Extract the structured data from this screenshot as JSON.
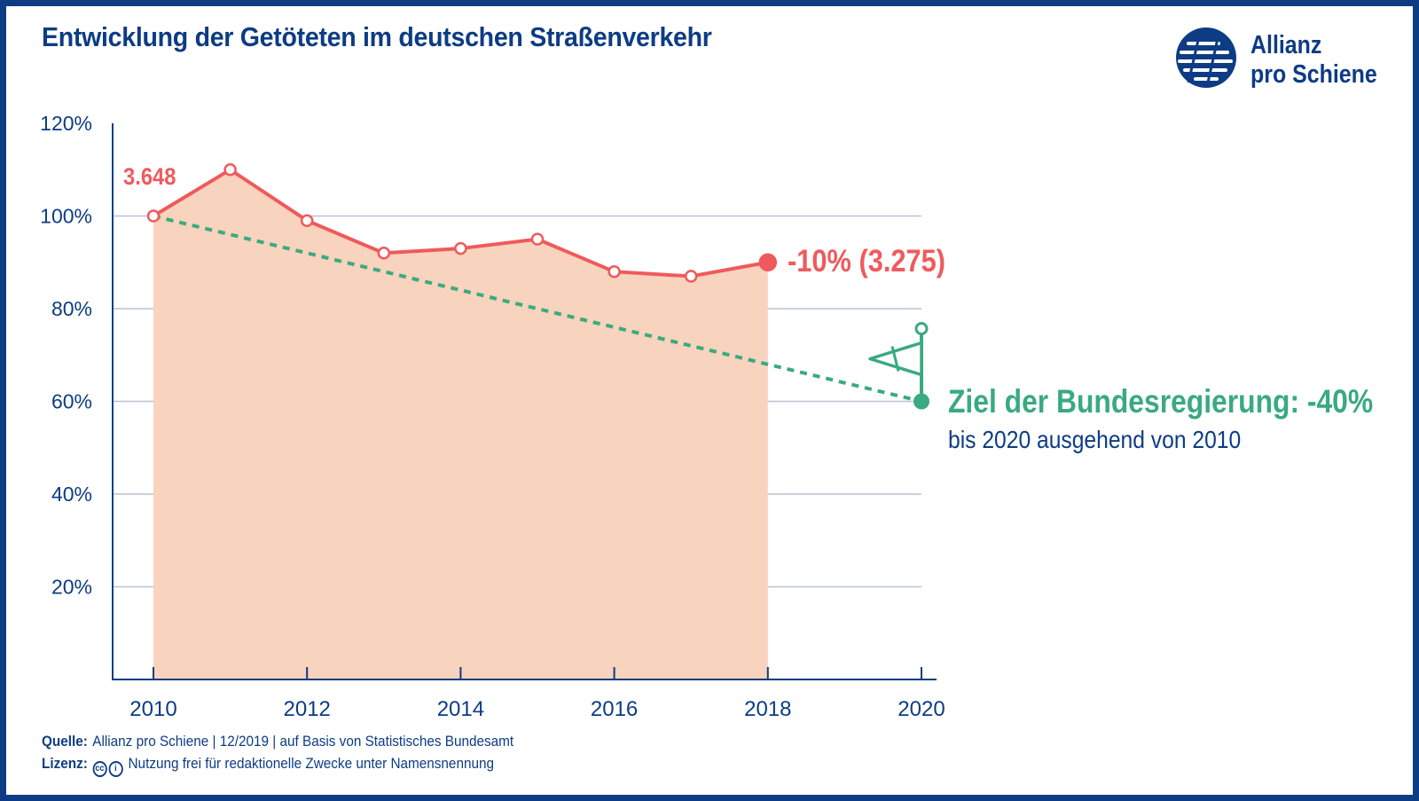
{
  "title": "Entwicklung der Getöteten im deutschen Straßenverkehr",
  "logo": {
    "line1": "Allianz",
    "line2": "pro Schiene",
    "icon": "allianz-pro-schiene-logo-icon"
  },
  "colors": {
    "navy": "#0d3c84",
    "red": "#ef5a5d",
    "fill": "#f8d3bd",
    "green": "#3aaa80",
    "grid": "#b8c2d2"
  },
  "chart_data": {
    "type": "line",
    "x": [
      2010,
      2011,
      2012,
      2013,
      2014,
      2015,
      2016,
      2017,
      2018
    ],
    "series": [
      {
        "values": [
          100,
          110,
          99,
          92,
          93,
          95,
          88,
          87,
          90
        ]
      }
    ],
    "target_line": {
      "x": [
        2010,
        2020
      ],
      "values": [
        100,
        60
      ]
    },
    "xlim": [
      2010,
      2020
    ],
    "ylim": [
      0,
      120
    ],
    "x_ticks": [
      "2010",
      "2012",
      "2014",
      "2016",
      "2018",
      "2020"
    ],
    "y_ticks": [
      "20%",
      "40%",
      "60%",
      "80%",
      "100%",
      "120%"
    ],
    "grid": "horizontal",
    "start_label": "3.648",
    "end_label": "-10% (3.275)"
  },
  "goal": {
    "title": "Ziel der Bundesregierung: -40%",
    "subtitle": "bis 2020 ausgehend von 2010"
  },
  "footer": {
    "source_label": "Quelle:",
    "source_text": "Allianz pro Schiene | 12/2019 | auf Basis von Statistisches Bundesamt",
    "license_label": "Lizenz:",
    "license_text": "Nutzung frei für redaktionelle Zwecke unter Namensnennung",
    "cc_icon": "creative-commons-icon",
    "by_icon": "attribution-icon"
  }
}
